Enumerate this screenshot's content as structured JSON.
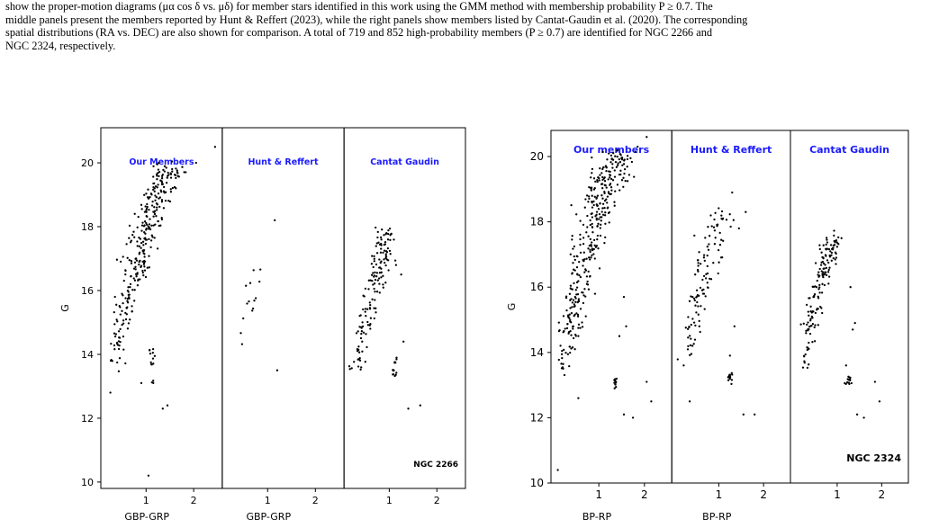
{
  "caption": {
    "line1": "show the proper-motion diagrams (μα cos δ vs. μδ) for member stars identified in this work using the GMM method with membership probability P ≥ 0.7. The",
    "line2": "middle panels present the members reported by Hunt & Reffert (2023), while the right panels show members listed by Cantat-Gaudin et al. (2020). The corresponding",
    "line3": "spatial distributions (RA vs. DEC) are also shown for comparison. A total of 719 and 852 high-probability members (P ≥ 0.7) are identified for NGC 2266 and",
    "line4": "NGC 2324, respectively."
  },
  "colors": {
    "panel_label": "#1a1aff",
    "points": "#000000"
  },
  "chart_data": [
    {
      "type": "scatter",
      "cluster": "NGC 2266",
      "ylabel": "G",
      "xlabel": "GBP-GRP",
      "ylim": [
        21.1,
        9.8
      ],
      "xlim": [
        0.05,
        2.6
      ],
      "yticks": [
        "10",
        "12",
        "14",
        "16",
        "18",
        "20"
      ],
      "xticks": [
        "1",
        "2"
      ],
      "panels": [
        {
          "label": "Our Members",
          "trend": [
            [
              0.3,
              13.6
            ],
            [
              0.5,
              15.0
            ],
            [
              0.75,
              16.3
            ],
            [
              0.9,
              17.3
            ],
            [
              1.05,
              18.2
            ],
            [
              1.25,
              19.1
            ],
            [
              1.55,
              19.9
            ]
          ],
          "count": 300,
          "spread": 0.09,
          "branch_x": 1.12,
          "branch_y": [
            13.1,
            14.2
          ],
          "extra": [
            [
              1.05,
              10.2
            ],
            [
              0.25,
              12.8
            ],
            [
              1.35,
              12.3
            ],
            [
              1.45,
              12.4
            ],
            [
              0.9,
              13.1
            ],
            [
              2.45,
              20.5
            ],
            [
              2.05,
              20.0
            ]
          ]
        },
        {
          "label": "Hunt & Reffert",
          "trend": [
            [
              0.3,
              13.3
            ],
            [
              0.45,
              14.8
            ],
            [
              0.62,
              15.8
            ],
            [
              0.8,
              16.7
            ]
          ],
          "count": 14,
          "spread": 0.05,
          "branch_x": 0,
          "branch_y": [
            0,
            0
          ],
          "extra": [
            [
              1.2,
              13.5
            ],
            [
              1.15,
              18.2
            ]
          ]
        },
        {
          "label": "Cantat Gaudin",
          "trend": [
            [
              0.3,
              13.4
            ],
            [
              0.5,
              14.9
            ],
            [
              0.7,
              16.2
            ],
            [
              0.85,
              17.1
            ],
            [
              0.98,
              17.9
            ]
          ],
          "count": 150,
          "spread": 0.07,
          "branch_x": 1.12,
          "branch_y": [
            13.2,
            13.9
          ],
          "extra": [
            [
              1.4,
              12.3
            ],
            [
              1.65,
              12.4
            ],
            [
              1.3,
              14.4
            ],
            [
              1.25,
              16.5
            ]
          ]
        }
      ],
      "annotation": "NGC 2266"
    },
    {
      "type": "scatter",
      "cluster": "NGC 2324",
      "ylabel": "G",
      "xlabel": "BP-RP",
      "ylim": [
        20.8,
        10.0
      ],
      "xlim": [
        -0.05,
        2.6
      ],
      "yticks": [
        "10",
        "12",
        "14",
        "16",
        "18",
        "20"
      ],
      "xticks": [
        "1",
        "2"
      ],
      "panels": [
        {
          "label": "Our members",
          "trend": [
            [
              0.2,
              13.4
            ],
            [
              0.35,
              14.8
            ],
            [
              0.55,
              16.0
            ],
            [
              0.75,
              17.2
            ],
            [
              0.95,
              18.3
            ],
            [
              1.15,
              19.2
            ],
            [
              1.45,
              20.1
            ]
          ],
          "count": 360,
          "spread": 0.1,
          "branch_x": 1.35,
          "branch_y": [
            12.9,
            13.2
          ],
          "extra": [
            [
              0.1,
              10.4
            ],
            [
              0.55,
              12.6
            ],
            [
              1.55,
              12.1
            ],
            [
              1.75,
              12.0
            ],
            [
              2.15,
              12.5
            ],
            [
              2.05,
              13.1
            ],
            [
              1.45,
              14.5
            ],
            [
              1.6,
              14.8
            ],
            [
              1.55,
              15.7
            ],
            [
              2.05,
              20.6
            ],
            [
              1.85,
              20.3
            ]
          ]
        },
        {
          "label": "Hunt & Reffert",
          "trend": [
            [
              0.25,
              13.6
            ],
            [
              0.4,
              14.9
            ],
            [
              0.6,
              16.0
            ],
            [
              0.85,
              17.3
            ],
            [
              1.1,
              18.3
            ]
          ],
          "count": 110,
          "spread": 0.08,
          "branch_x": 1.25,
          "branch_y": [
            13.0,
            13.4
          ],
          "extra": [
            [
              0.35,
              12.5
            ],
            [
              1.55,
              12.1
            ],
            [
              1.8,
              12.1
            ],
            [
              1.25,
              13.9
            ],
            [
              1.35,
              14.8
            ],
            [
              1.45,
              17.8
            ],
            [
              1.3,
              18.9
            ],
            [
              1.6,
              18.3
            ]
          ]
        },
        {
          "label": "Cantat Gaudin",
          "trend": [
            [
              0.25,
              13.4
            ],
            [
              0.4,
              14.8
            ],
            [
              0.55,
              15.8
            ],
            [
              0.75,
              16.8
            ],
            [
              0.95,
              17.5
            ]
          ],
          "count": 150,
          "spread": 0.06,
          "branch_x": 1.25,
          "branch_y": [
            13.0,
            13.3
          ],
          "extra": [
            [
              1.45,
              12.1
            ],
            [
              1.6,
              12.0
            ],
            [
              1.95,
              12.5
            ],
            [
              1.85,
              13.1
            ],
            [
              1.2,
              13.6
            ],
            [
              1.35,
              14.7
            ],
            [
              1.4,
              14.9
            ],
            [
              1.3,
              16.0
            ]
          ]
        }
      ],
      "annotation": "NGC 2324"
    }
  ]
}
